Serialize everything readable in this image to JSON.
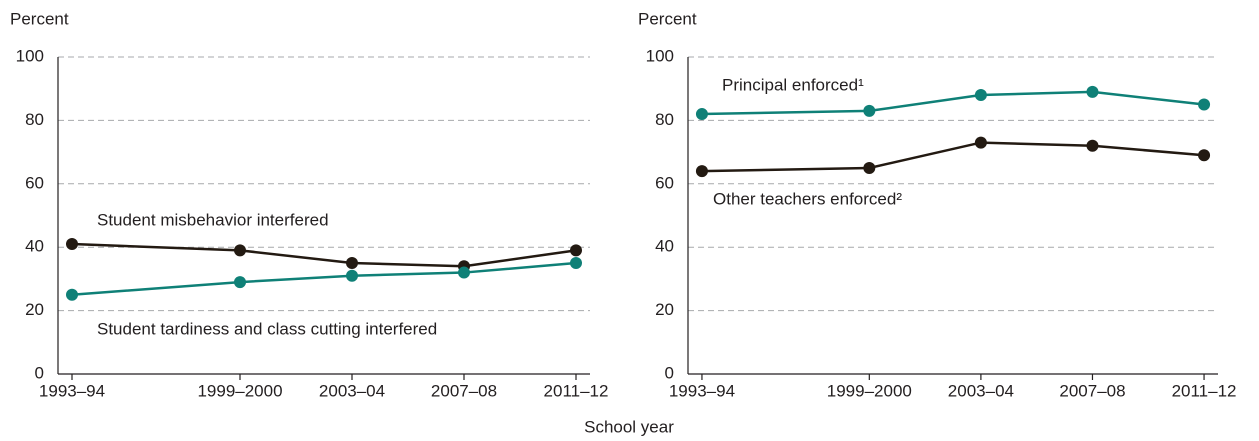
{
  "chart_data": [
    {
      "type": "line",
      "ylabel": "Percent",
      "x": [
        1993,
        1999,
        2003,
        2007,
        2011
      ],
      "xlim": [
        1992.5,
        2011.5
      ],
      "xticks": [
        {
          "value": 1993,
          "label": "1993–94"
        },
        {
          "value": 1999,
          "label": "1999–2000"
        },
        {
          "value": 2003,
          "label": "2003–04"
        },
        {
          "value": 2007,
          "label": "2007–08"
        },
        {
          "value": 2011,
          "label": "2011–12"
        }
      ],
      "ylim": [
        0,
        100
      ],
      "yticks": [
        0,
        20,
        40,
        60,
        80,
        100
      ],
      "grid": true,
      "series": [
        {
          "name": "Student misbehavior interfered",
          "color": "#231a12",
          "values": [
            41,
            39,
            35,
            34,
            39
          ]
        },
        {
          "name": "Student tardiness and class cutting interfered",
          "color": "#0f8077",
          "values": [
            25,
            29,
            31,
            32,
            35
          ]
        }
      ]
    },
    {
      "type": "line",
      "ylabel": "Percent",
      "x": [
        1993,
        1999,
        2003,
        2007,
        2011
      ],
      "xlim": [
        1992.5,
        2011.5
      ],
      "xticks": [
        {
          "value": 1993,
          "label": "1993–94"
        },
        {
          "value": 1999,
          "label": "1999–2000"
        },
        {
          "value": 2003,
          "label": "2003–04"
        },
        {
          "value": 2007,
          "label": "2007–08"
        },
        {
          "value": 2011,
          "label": "2011–12"
        }
      ],
      "ylim": [
        0,
        100
      ],
      "yticks": [
        0,
        20,
        40,
        60,
        80,
        100
      ],
      "grid": true,
      "series": [
        {
          "name": "Principal enforced¹",
          "color": "#0f8077",
          "values": [
            82,
            83,
            88,
            89,
            85
          ]
        },
        {
          "name": "Other teachers enforced²",
          "color": "#231a12",
          "values": [
            64,
            65,
            73,
            72,
            69
          ]
        }
      ]
    }
  ],
  "x_axis_label": "School year"
}
